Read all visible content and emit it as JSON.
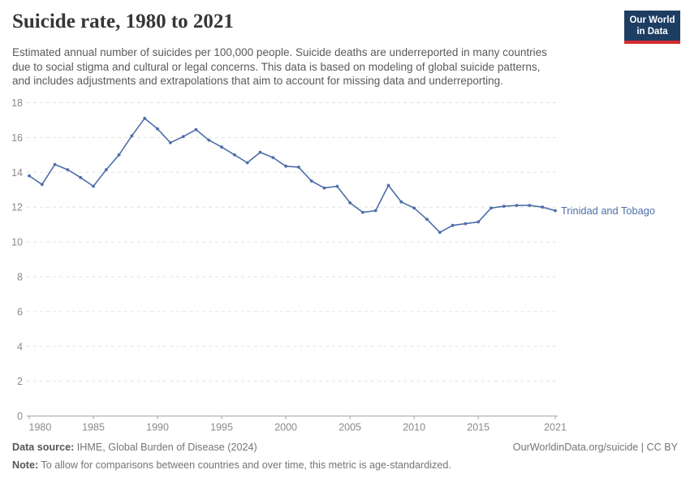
{
  "header": {
    "title": "Suicide rate, 1980 to 2021",
    "subtitle_lines": [
      "Estimated annual number of suicides per 100,000 people. Suicide deaths are underreported in many countries",
      "due to social stigma and cultural or legal concerns. This data is based on modeling of global suicide patterns,",
      "and includes adjustments and extrapolations that aim to account for missing data and underreporting."
    ],
    "logo": {
      "line1": "Our World",
      "line2": "in Data",
      "bg_color": "#1d3d63",
      "accent_color": "#d42b2f"
    }
  },
  "chart_data": {
    "type": "line",
    "title": "Suicide rate, 1980 to 2021",
    "xlabel": "",
    "ylabel": "",
    "ylim": [
      0,
      18
    ],
    "yticks": [
      0,
      2,
      4,
      6,
      8,
      10,
      12,
      14,
      16,
      18
    ],
    "xticks": [
      1980,
      1985,
      1990,
      1995,
      2000,
      2005,
      2010,
      2015,
      2021
    ],
    "grid": "horizontal-dashed",
    "legend_position": "end-of-line-label",
    "series": [
      {
        "name": "Trinidad and Tobago",
        "color": "#4d6ea7",
        "x": [
          1980,
          1981,
          1982,
          1983,
          1984,
          1985,
          1986,
          1987,
          1988,
          1989,
          1990,
          1991,
          1992,
          1993,
          1994,
          1995,
          1996,
          1997,
          1998,
          1999,
          2000,
          2001,
          2002,
          2003,
          2004,
          2005,
          2006,
          2007,
          2008,
          2009,
          2010,
          2011,
          2012,
          2013,
          2014,
          2015,
          2016,
          2017,
          2018,
          2019,
          2020,
          2021
        ],
        "values": [
          13.8,
          13.3,
          14.45,
          14.15,
          13.7,
          13.2,
          14.15,
          15.0,
          16.1,
          17.1,
          16.5,
          15.7,
          16.05,
          16.45,
          15.85,
          15.45,
          15.0,
          14.55,
          15.15,
          14.85,
          14.35,
          14.3,
          13.5,
          13.1,
          13.2,
          12.25,
          11.7,
          11.8,
          13.25,
          12.3,
          11.95,
          11.3,
          10.55,
          10.95,
          11.05,
          11.15,
          11.95,
          12.05,
          12.1,
          12.1,
          12.0,
          11.8
        ]
      }
    ],
    "axis_color": "#a3a3a3",
    "gridline_color": "#e2e2e2",
    "tick_label_color": "#8a8a8a"
  },
  "footer": {
    "datasource_label": "Data source:",
    "datasource_value": " IHME, Global Burden of Disease (2024)",
    "rights": "OurWorldinData.org/suicide | CC BY",
    "note_label": "Note:",
    "note_value": " To allow for comparisons between countries and over time, this metric is age-standardized."
  }
}
